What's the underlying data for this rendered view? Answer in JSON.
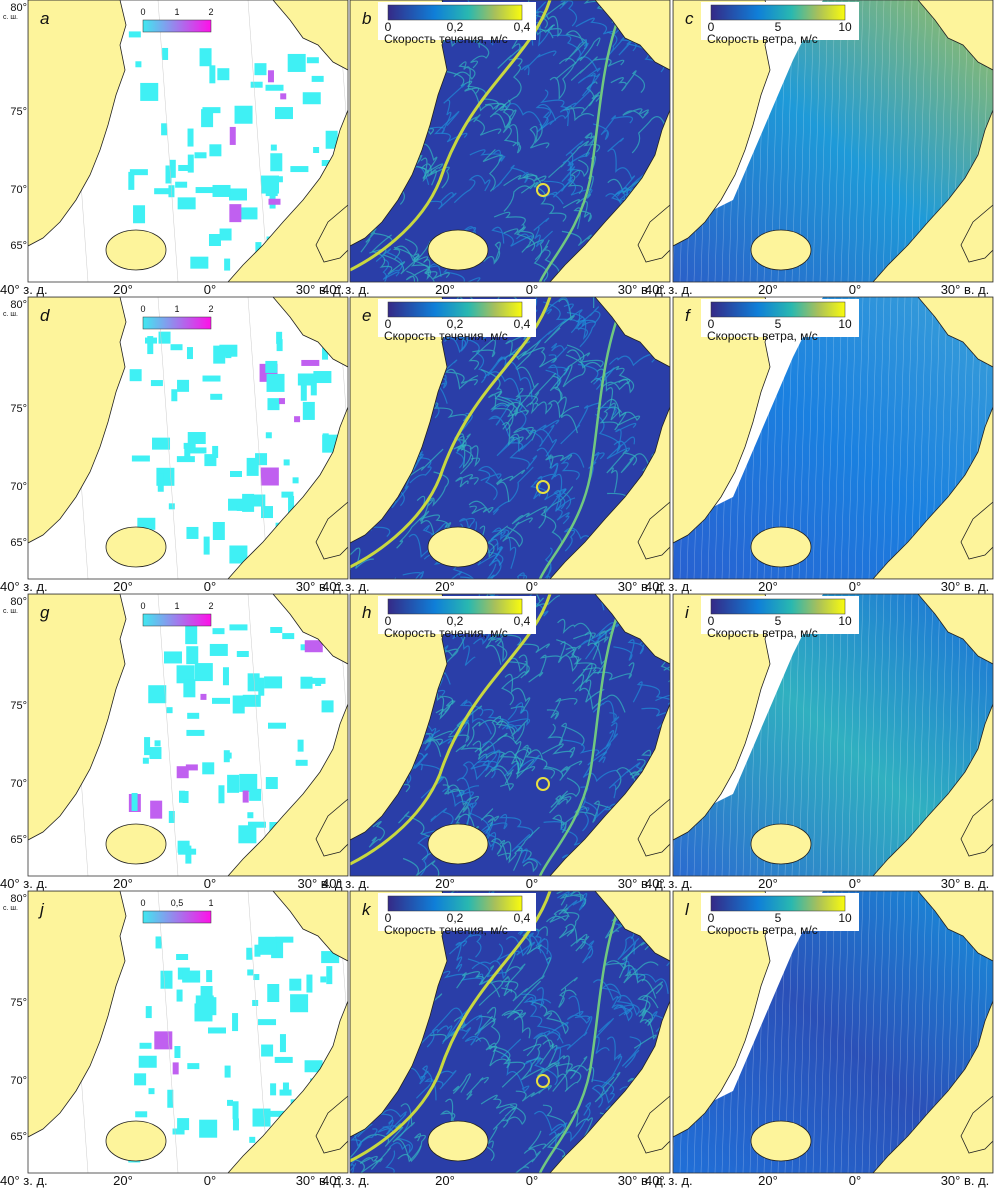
{
  "rows": [
    {
      "lat_labels": [
        "80°",
        "с. ш.",
        "75°",
        "70°",
        "65°"
      ],
      "panels": [
        {
          "letter": "a",
          "colorbar_ticks": [
            "0",
            "1",
            "2"
          ],
          "lon_labels": [
            "40° з. д.",
            "20°",
            "0°",
            "30° в. д."
          ]
        },
        {
          "letter": "b",
          "colorbar_ticks": [
            "0",
            "0,2",
            "0,4"
          ],
          "colorbar_label": "Скорость течения, м/с",
          "lon_labels": [
            "40° з. д.",
            "20°",
            "0°",
            "30° в. д."
          ]
        },
        {
          "letter": "c",
          "colorbar_ticks": [
            "0",
            "5",
            "10"
          ],
          "colorbar_label": "Скорость ветра, м/с",
          "lon_labels": [
            "40° з. д.",
            "20°",
            "0°",
            "30° в. д."
          ]
        }
      ]
    },
    {
      "lat_labels": [
        "80°",
        "с. ш.",
        "75°",
        "70°",
        "65°"
      ],
      "panels": [
        {
          "letter": "d",
          "colorbar_ticks": [
            "0",
            "1",
            "2"
          ],
          "lon_labels": [
            "40° з. д.",
            "20°",
            "0°",
            "30° в. д."
          ]
        },
        {
          "letter": "e",
          "colorbar_ticks": [
            "0",
            "0,2",
            "0,4"
          ],
          "colorbar_label": "Скорость течения, м/с",
          "lon_labels": [
            "40° з. д.",
            "20°",
            "0°",
            "30° в. д."
          ]
        },
        {
          "letter": "f",
          "colorbar_ticks": [
            "0",
            "5",
            "10"
          ],
          "colorbar_label": "Скорость ветра, м/с",
          "lon_labels": [
            "40° з. д.",
            "20°",
            "0°",
            "30° в. д."
          ]
        }
      ]
    },
    {
      "lat_labels": [
        "80°",
        "с. ш.",
        "75°",
        "70°",
        "65°"
      ],
      "panels": [
        {
          "letter": "g",
          "colorbar_ticks": [
            "0",
            "1",
            "2"
          ],
          "lon_labels": [
            "40° з. д.",
            "20°",
            "0°",
            "30° в. д"
          ]
        },
        {
          "letter": "h",
          "colorbar_ticks": [
            "0",
            "0,2",
            "0,4"
          ],
          "colorbar_label": "Скорость течения, м/с",
          "lon_labels": [
            "40° з. д.",
            "20°",
            "0°",
            "30° в. д."
          ]
        },
        {
          "letter": "i",
          "colorbar_ticks": [
            "0",
            "5",
            "10"
          ],
          "colorbar_label": "Скорость ветра, м/с",
          "lon_labels": [
            "40° з. д.",
            "20°",
            "0°",
            "30° в. д."
          ]
        }
      ]
    },
    {
      "lat_labels": [
        "80°",
        "с. ш.",
        "75°",
        "70°",
        "65°"
      ],
      "panels": [
        {
          "letter": "j",
          "colorbar_ticks": [
            "0",
            "0,5",
            "1"
          ],
          "lon_labels": [
            "40° з. д.",
            "20°",
            "0°",
            "30° в. д."
          ]
        },
        {
          "letter": "k",
          "colorbar_ticks": [
            "0",
            "0,2",
            "0,4"
          ],
          "colorbar_label": "Скорость течения, м/с",
          "lon_labels": [
            "40° з. д.",
            "20°",
            "0°",
            "30° в. д."
          ]
        },
        {
          "letter": "l",
          "colorbar_ticks": [
            "0",
            "5",
            "10"
          ],
          "colorbar_label": "Скорость ветра, м/с",
          "lon_labels": [
            "40° з. д.",
            "20°",
            "0°",
            "30° в. д."
          ]
        }
      ]
    }
  ]
}
